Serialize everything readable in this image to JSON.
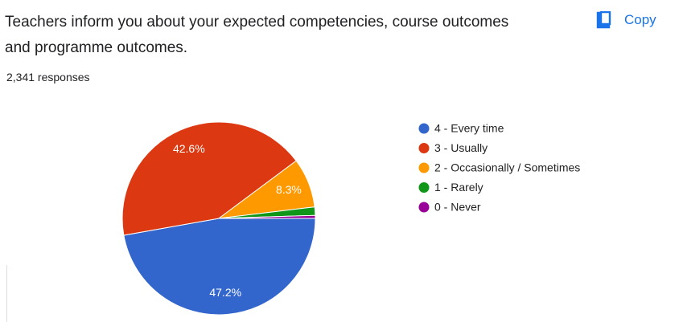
{
  "header": {
    "title": "Teachers inform you about your expected competencies, course outcomes and programme outcomes.",
    "copy": "Copy",
    "responses": "2,341 responses"
  },
  "chart_data": {
    "type": "pie",
    "categories": [
      "4 - Every time",
      "3 - Usually",
      "2 - Occasionally / Sometimes",
      "1 - Rarely",
      "0 - Never"
    ],
    "values": [
      47.2,
      42.6,
      8.3,
      1.4,
      0.5
    ],
    "value_labels": [
      "47.2%",
      "42.6%",
      "8.3%",
      null,
      null
    ],
    "colors": [
      "#3366cc",
      "#dc3912",
      "#ff9900",
      "#109618",
      "#990099"
    ],
    "legend": "right"
  }
}
